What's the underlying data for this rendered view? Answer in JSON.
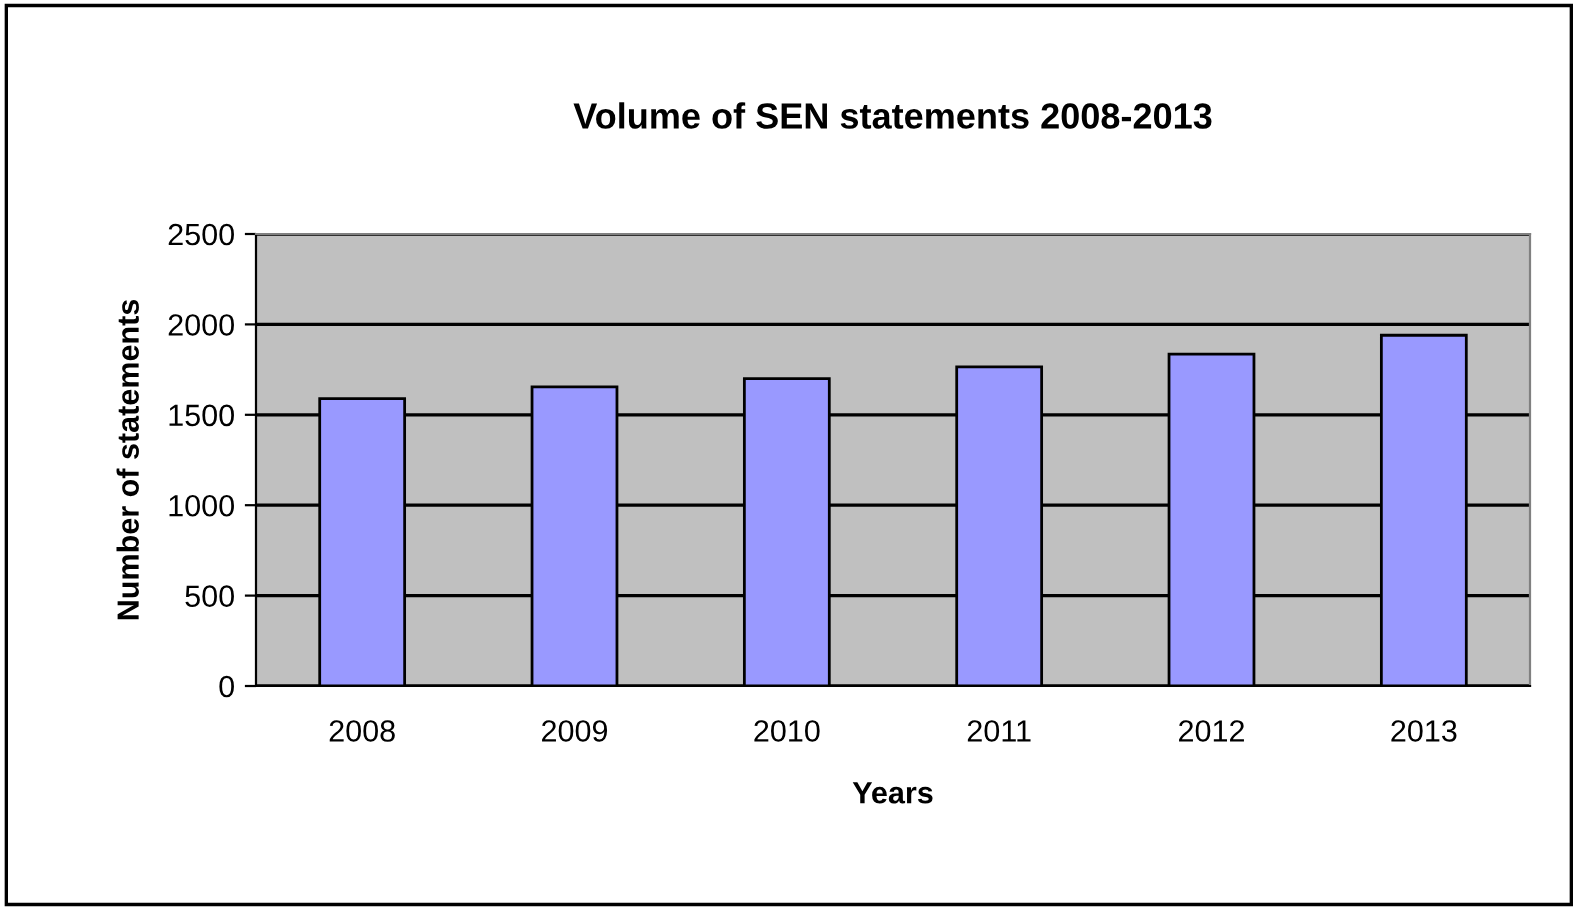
{
  "chart_data": {
    "type": "bar",
    "title": "Volume of SEN statements 2008-2013",
    "xlabel": "Years",
    "ylabel": "Number of statements",
    "categories": [
      "2008",
      "2009",
      "2010",
      "2011",
      "2012",
      "2013"
    ],
    "values": [
      1590,
      1655,
      1700,
      1765,
      1835,
      1940
    ],
    "color": "#9999ff",
    "ylim": [
      0,
      2500
    ],
    "yticks": [
      0,
      500,
      1000,
      1500,
      2000,
      2500
    ],
    "grid": "y",
    "legend": false
  }
}
